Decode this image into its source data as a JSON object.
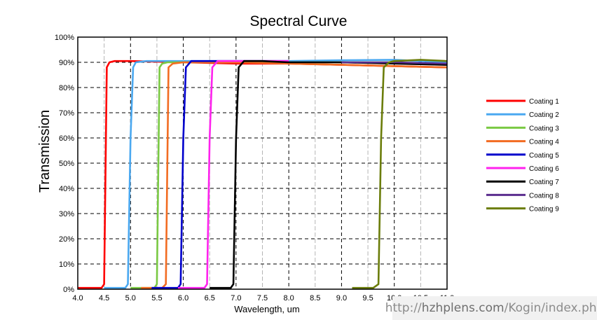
{
  "chart_data": {
    "type": "line",
    "title": "Spectral Curve",
    "xlabel": "Wavelength, um",
    "ylabel": "Transmission",
    "xlim": [
      4.0,
      11.0
    ],
    "ylim": [
      0,
      100
    ],
    "x_ticks": [
      "4.0",
      "4.5",
      "5.0",
      "5.5",
      "6.0",
      "6.5",
      "7.0",
      "7.5",
      "8.0",
      "8.5",
      "9.0",
      "9.5",
      "10.0",
      "10.5",
      "11.0"
    ],
    "y_ticks": [
      "0%",
      "10%",
      "20%",
      "30%",
      "40%",
      "50%",
      "60%",
      "70%",
      "80%",
      "90%",
      "100%"
    ],
    "grid": true,
    "legend_position": "right",
    "series": [
      {
        "name": "Coating 1",
        "color": "#ff0000",
        "x": [
          4.0,
          4.3,
          4.45,
          4.5,
          4.55,
          4.6,
          4.7,
          5.0,
          6.0,
          7.0,
          8.0,
          9.0,
          10.0,
          11.0
        ],
        "y": [
          0.5,
          0.5,
          0.5,
          2,
          88,
          90,
          90.5,
          90.5,
          90,
          89.5,
          89.5,
          89,
          88.5,
          88
        ]
      },
      {
        "name": "Coating 2",
        "color": "#4aa8f0",
        "x": [
          4.5,
          4.9,
          4.95,
          5.0,
          5.05,
          5.1,
          5.3,
          6.0,
          7.0,
          8.0,
          9.0,
          10.0,
          11.0
        ],
        "y": [
          0.5,
          0.5,
          2,
          60,
          88,
          90,
          90.5,
          90.5,
          90.5,
          90.5,
          90.8,
          91,
          90
        ]
      },
      {
        "name": "Coating 3",
        "color": "#7ac943",
        "x": [
          5.0,
          5.45,
          5.5,
          5.55,
          5.6,
          5.7,
          6.0,
          7.0,
          8.0,
          9.0,
          10.0,
          11.0
        ],
        "y": [
          0.5,
          0.5,
          2,
          88,
          89.5,
          90,
          90,
          90,
          90,
          90,
          90,
          89
        ]
      },
      {
        "name": "Coating 4",
        "color": "#f26c22",
        "x": [
          5.2,
          5.6,
          5.67,
          5.72,
          5.8,
          6.0,
          7.0,
          8.0,
          9.0,
          10.0,
          11.0
        ],
        "y": [
          0.5,
          0.5,
          2,
          88,
          89.5,
          90,
          90,
          89.5,
          89,
          88.5,
          88
        ]
      },
      {
        "name": "Coating 5",
        "color": "#0000cc",
        "x": [
          5.4,
          5.9,
          5.95,
          6.0,
          6.05,
          6.15,
          6.3,
          7.0,
          8.0
        ],
        "y": [
          0.5,
          0.5,
          2,
          60,
          88,
          90.5,
          90.5,
          90.5,
          90.5
        ]
      },
      {
        "name": "Coating 6",
        "color": "#ff22ee",
        "x": [
          5.9,
          6.4,
          6.45,
          6.5,
          6.55,
          6.65,
          7.0,
          8.0
        ],
        "y": [
          0.5,
          0.5,
          2,
          60,
          88,
          90.5,
          90.5,
          90.5
        ]
      },
      {
        "name": "Coating 7",
        "color": "#000000",
        "x": [
          6.5,
          6.9,
          6.95,
          7.0,
          7.05,
          7.15,
          7.5,
          8.0,
          9.0,
          10.0,
          11.0
        ],
        "y": [
          0.5,
          0.5,
          2,
          60,
          88,
          90.5,
          90.5,
          90,
          90,
          89.5,
          89
        ]
      },
      {
        "name": "Coating 8",
        "color": "#5b2d8e",
        "x": [
          9.0,
          10.0,
          11.0
        ],
        "y": [
          90,
          90,
          89.5
        ]
      },
      {
        "name": "Coating 9",
        "color": "#6b7d0a",
        "x": [
          9.2,
          9.6,
          9.7,
          9.75,
          9.8,
          9.9,
          10.0,
          10.5,
          11.0
        ],
        "y": [
          0.5,
          0.5,
          2,
          60,
          88,
          90,
          90.5,
          91,
          90.5
        ]
      }
    ]
  },
  "watermark": {
    "prefix": "http://",
    "domain": "hzhplens.com",
    "path": "/Kogin/index.php"
  }
}
